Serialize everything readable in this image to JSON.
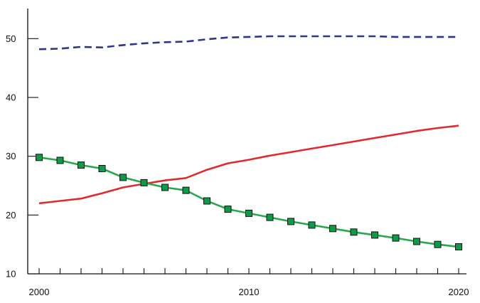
{
  "chart_data": {
    "type": "line",
    "title": "",
    "xlabel": "",
    "ylabel": "",
    "xlim": [
      2000,
      2020
    ],
    "ylim": [
      10,
      55
    ],
    "x_ticks": [
      2000,
      2010,
      2020
    ],
    "y_ticks": [
      10,
      20,
      30,
      40,
      50
    ],
    "x_tick_labels": [
      "2000",
      "2010",
      "2020"
    ],
    "y_tick_labels": [
      "10",
      "20",
      "30",
      "40",
      "50"
    ],
    "grid": false,
    "legend": "none",
    "x": [
      2000,
      2001,
      2002,
      2003,
      2004,
      2005,
      2006,
      2007,
      2008,
      2009,
      2010,
      2011,
      2012,
      2013,
      2014,
      2015,
      2016,
      2017,
      2018,
      2019,
      2020
    ],
    "series": [
      {
        "color": "#2d3491",
        "style": "dashed",
        "marker": "none",
        "values": [
          48.2,
          48.3,
          48.6,
          48.5,
          48.9,
          49.2,
          49.4,
          49.5,
          49.9,
          50.2,
          50.3,
          50.4,
          50.4,
          50.4,
          50.4,
          50.4,
          50.4,
          50.3,
          50.3,
          50.3,
          50.3
        ]
      },
      {
        "color": "#e02a2f",
        "style": "solid",
        "marker": "none",
        "values": [
          22.0,
          22.4,
          22.8,
          23.7,
          24.7,
          25.3,
          25.9,
          26.3,
          27.7,
          28.8,
          29.4,
          30.1,
          30.7,
          31.3,
          31.9,
          32.5,
          33.1,
          33.7,
          34.3,
          34.8,
          35.2
        ]
      },
      {
        "color": "#27a84c",
        "marker_color": "#0f9a4a",
        "style": "solid",
        "marker": "square",
        "values": [
          29.8,
          29.3,
          28.5,
          27.9,
          26.4,
          25.5,
          24.7,
          24.2,
          22.4,
          21.0,
          20.3,
          19.6,
          18.9,
          18.3,
          17.7,
          17.1,
          16.6,
          16.1,
          15.5,
          15.0,
          14.6
        ]
      }
    ]
  }
}
